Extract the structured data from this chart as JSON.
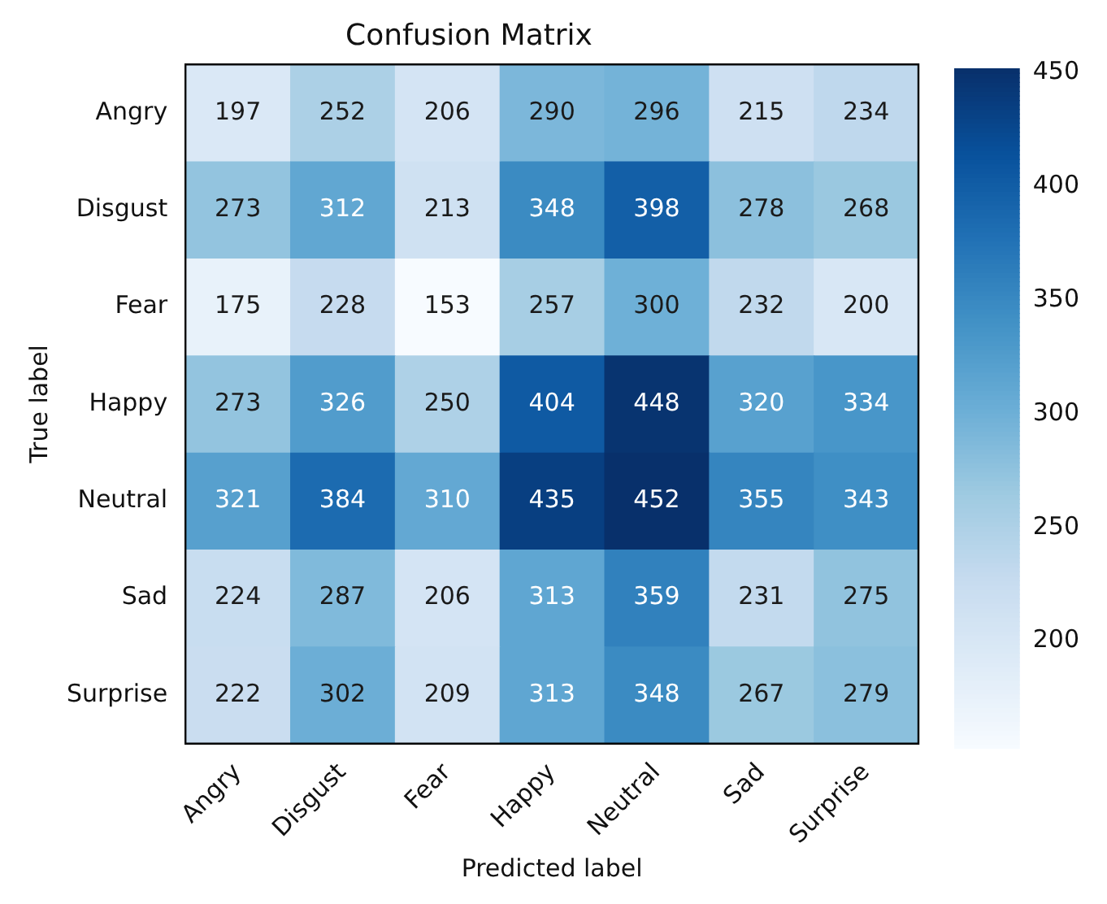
{
  "chart_data": {
    "type": "heatmap",
    "title": "Confusion Matrix",
    "xlabel": "Predicted label",
    "ylabel": "True label",
    "categories": [
      "Angry",
      "Disgust",
      "Fear",
      "Happy",
      "Neutral",
      "Sad",
      "Surprise"
    ],
    "y_categories": [
      "Angry",
      "Disgust",
      "Fear",
      "Happy",
      "Neutral",
      "Sad",
      "Surprise"
    ],
    "cells": [
      [
        197,
        252,
        206,
        290,
        296,
        215,
        234
      ],
      [
        273,
        312,
        213,
        348,
        398,
        278,
        268
      ],
      [
        175,
        228,
        153,
        257,
        300,
        232,
        200
      ],
      [
        273,
        326,
        250,
        404,
        448,
        320,
        334
      ],
      [
        321,
        384,
        310,
        435,
        452,
        355,
        343
      ],
      [
        224,
        287,
        206,
        313,
        359,
        231,
        275
      ],
      [
        222,
        302,
        209,
        313,
        348,
        267,
        279
      ]
    ],
    "data_labels": true,
    "clim": [
      153,
      452
    ],
    "cticks": [
      200,
      250,
      300,
      350,
      400,
      450
    ]
  }
}
